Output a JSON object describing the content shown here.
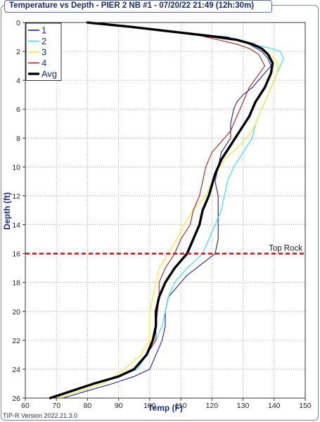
{
  "chart_data": {
    "type": "line",
    "title": "Temperature vs Depth - PIER 2 NB #1 - 07/20/22 21:49 (12h:30m)",
    "xlabel": "Temp (F)",
    "ylabel": "Depth (ft)",
    "xlim": [
      60,
      150
    ],
    "ylim": [
      0,
      26
    ],
    "y_inverted": true,
    "xticks": [
      60,
      70,
      80,
      90,
      100,
      110,
      120,
      130,
      140,
      150
    ],
    "yticks": [
      0,
      2,
      4,
      6,
      8,
      10,
      12,
      14,
      16,
      18,
      20,
      22,
      24,
      26
    ],
    "grid": true,
    "legend_position": "top-left",
    "series": [
      {
        "name": "1",
        "color": "#1f1f9e",
        "width": 1.1,
        "points": [
          [
            80,
            0
          ],
          [
            95,
            0.3
          ],
          [
            102,
            0.5
          ],
          [
            125,
            1.0
          ],
          [
            132,
            1.5
          ],
          [
            136,
            2.0
          ],
          [
            138,
            2.5
          ],
          [
            139,
            3.0
          ],
          [
            137,
            3.5
          ],
          [
            133,
            4.5
          ],
          [
            130,
            5.0
          ],
          [
            128,
            5.5
          ],
          [
            127,
            6.0
          ],
          [
            126,
            7.0
          ],
          [
            126,
            8.0
          ],
          [
            123,
            9.0
          ],
          [
            122,
            10.0
          ],
          [
            121,
            11.0
          ],
          [
            122,
            12.0
          ],
          [
            122,
            14.0
          ],
          [
            122,
            15.0
          ],
          [
            121,
            16.0
          ],
          [
            118,
            16.5
          ],
          [
            112,
            17.5
          ],
          [
            110,
            18.0
          ],
          [
            108,
            18.5
          ],
          [
            106,
            19.0
          ],
          [
            105,
            20.0
          ],
          [
            105,
            21.0
          ],
          [
            104,
            22.0
          ],
          [
            102,
            23.0
          ],
          [
            100,
            24.0
          ],
          [
            95,
            24.5
          ],
          [
            88,
            25.0
          ],
          [
            80,
            25.5
          ],
          [
            72,
            26.0
          ]
        ]
      },
      {
        "name": "2",
        "color": "#2ee0ee",
        "width": 1.1,
        "points": [
          [
            80,
            0
          ],
          [
            92,
            0.3
          ],
          [
            102,
            0.5
          ],
          [
            118,
            0.9
          ],
          [
            126,
            1.1
          ],
          [
            133,
            1.5
          ],
          [
            139,
            1.8
          ],
          [
            142,
            2.0
          ],
          [
            143,
            2.5
          ],
          [
            141,
            3.5
          ],
          [
            140,
            4.0
          ],
          [
            138,
            5.0
          ],
          [
            136,
            6.0
          ],
          [
            134,
            7.0
          ],
          [
            133,
            8.0
          ],
          [
            130,
            9.0
          ],
          [
            127,
            10.0
          ],
          [
            125,
            11.0
          ],
          [
            124,
            12.0
          ],
          [
            123,
            13.0
          ],
          [
            121,
            14.0
          ],
          [
            119,
            15.0
          ],
          [
            117,
            16.0
          ],
          [
            112,
            17.0
          ],
          [
            108,
            18.0
          ],
          [
            106,
            19.0
          ],
          [
            105,
            20.0
          ],
          [
            104,
            21.0
          ],
          [
            102,
            22.0
          ],
          [
            99,
            23.0
          ],
          [
            96,
            24.0
          ],
          [
            90,
            24.5
          ],
          [
            82,
            25.0
          ],
          [
            75,
            25.5
          ],
          [
            69,
            26.0
          ]
        ]
      },
      {
        "name": "3",
        "color": "#f0ec1c",
        "width": 1.1,
        "points": [
          [
            80,
            0
          ],
          [
            92,
            0.3
          ],
          [
            100,
            0.5
          ],
          [
            120,
            0.9
          ],
          [
            130,
            1.3
          ],
          [
            136,
            1.8
          ],
          [
            139,
            2.3
          ],
          [
            141,
            2.8
          ],
          [
            141,
            3.5
          ],
          [
            139,
            4.5
          ],
          [
            137,
            5.5
          ],
          [
            135,
            6.5
          ],
          [
            133,
            7.5
          ],
          [
            129,
            8.5
          ],
          [
            124,
            9.5
          ],
          [
            121,
            10.5
          ],
          [
            118,
            12.0
          ],
          [
            114,
            13.0
          ],
          [
            111,
            14.0
          ],
          [
            110,
            14.5
          ],
          [
            106,
            16.0
          ],
          [
            103,
            17.0
          ],
          [
            102,
            18.0
          ],
          [
            100,
            20.0
          ],
          [
            100,
            22.0
          ],
          [
            97,
            23.0
          ],
          [
            92,
            24.0
          ],
          [
            85,
            25.0
          ],
          [
            78,
            25.5
          ],
          [
            70,
            26.0
          ]
        ]
      },
      {
        "name": "4",
        "color": "#b01c1c",
        "width": 1.1,
        "points": [
          [
            80,
            0
          ],
          [
            94,
            0.3
          ],
          [
            102,
            0.5
          ],
          [
            116,
            0.9
          ],
          [
            122,
            1.2
          ],
          [
            128,
            1.5
          ],
          [
            132,
            1.8
          ],
          [
            135,
            2.2
          ],
          [
            137,
            3.0
          ],
          [
            135,
            3.6
          ],
          [
            132,
            4.5
          ],
          [
            130,
            5.5
          ],
          [
            128,
            6.5
          ],
          [
            126,
            7.5
          ],
          [
            122,
            8.5
          ],
          [
            120,
            9.0
          ],
          [
            118,
            10.0
          ],
          [
            117,
            11.0
          ],
          [
            116,
            12.0
          ],
          [
            114,
            13.0
          ],
          [
            113,
            14.0
          ],
          [
            110,
            15.0
          ],
          [
            108,
            16.0
          ],
          [
            105,
            17.0
          ],
          [
            103,
            18.0
          ],
          [
            103,
            19.0
          ],
          [
            102,
            21.0
          ],
          [
            102,
            22.0
          ],
          [
            99,
            23.0
          ],
          [
            95,
            24.0
          ],
          [
            90,
            24.5
          ],
          [
            82,
            25.0
          ],
          [
            75,
            25.5
          ],
          [
            68,
            26.0
          ]
        ]
      },
      {
        "name": "Avg",
        "color": "#000000",
        "width": 3.4,
        "points": [
          [
            80,
            0
          ],
          [
            94,
            0.3
          ],
          [
            102,
            0.5
          ],
          [
            118,
            0.9
          ],
          [
            128,
            1.2
          ],
          [
            133,
            1.5
          ],
          [
            136,
            1.8
          ],
          [
            138,
            2.2
          ],
          [
            139.5,
            2.8
          ],
          [
            139,
            3.5
          ],
          [
            137,
            4.5
          ],
          [
            134,
            5.5
          ],
          [
            132,
            6.5
          ],
          [
            129,
            7.5
          ],
          [
            126,
            8.5
          ],
          [
            123,
            9.5
          ],
          [
            121,
            10.5
          ],
          [
            119,
            12.0
          ],
          [
            117,
            13.0
          ],
          [
            116,
            14.0
          ],
          [
            114,
            15.0
          ],
          [
            112,
            16.0
          ],
          [
            108,
            17.0
          ],
          [
            105,
            18.0
          ],
          [
            103,
            19.0
          ],
          [
            102,
            20.0
          ],
          [
            102,
            21.0
          ],
          [
            101,
            22.0
          ],
          [
            99,
            23.0
          ],
          [
            95,
            24.0
          ],
          [
            90,
            24.5
          ],
          [
            82,
            25.0
          ],
          [
            75,
            25.5
          ],
          [
            68,
            26.0
          ]
        ]
      }
    ],
    "annotations": [
      {
        "label": "Top Rock",
        "type": "hline",
        "y": 16,
        "color": "#cc1111",
        "style": "dashed"
      }
    ]
  },
  "footer": {
    "version": "TIP-R Version 2022.21.3.0"
  }
}
